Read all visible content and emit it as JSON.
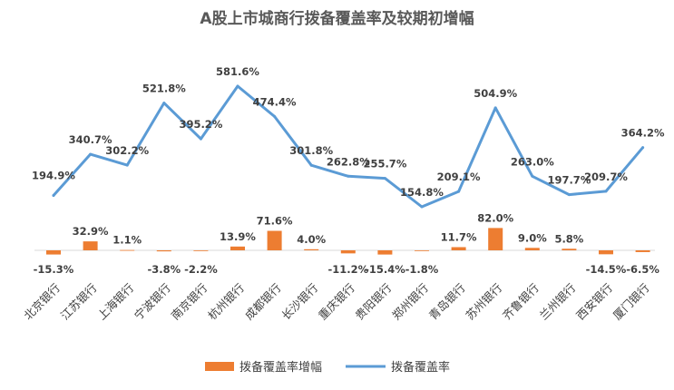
{
  "chart_data": {
    "type": "bar+line",
    "title": "A股上市城商行拨备覆盖率及较期初增幅",
    "categories": [
      "北京银行",
      "江苏银行",
      "上海银行",
      "宁波银行",
      "南京银行",
      "杭州银行",
      "成都银行",
      "长沙银行",
      "重庆银行",
      "贵阳银行",
      "郑州银行",
      "青岛银行",
      "苏州银行",
      "齐鲁银行",
      "兰州银行",
      "西安银行",
      "厦门银行"
    ],
    "series": [
      {
        "name": "拨备覆盖率增幅",
        "type": "bar",
        "values": [
          -15.3,
          32.9,
          1.1,
          -3.8,
          -2.2,
          13.9,
          71.6,
          4.0,
          -11.2,
          -15.4,
          -1.8,
          11.7,
          82.0,
          9.0,
          5.8,
          -14.5,
          -6.5
        ],
        "labels": [
          "-15.3%",
          "32.9%",
          "1.1%",
          "-3.8%",
          "-2.2%",
          "13.9%",
          "71.6%",
          "4.0%",
          "-11.2%",
          "-15.4%",
          "-1.8%",
          "11.7%",
          "82.0%",
          "9.0%",
          "5.8%",
          "-14.5%",
          "-6.5%"
        ],
        "color": "#ED7D31"
      },
      {
        "name": "拨备覆盖率",
        "type": "line",
        "values": [
          194.9,
          340.7,
          302.2,
          521.8,
          395.2,
          581.6,
          474.4,
          301.8,
          262.8,
          255.7,
          154.8,
          209.1,
          504.9,
          263.0,
          197.7,
          209.7,
          364.2
        ],
        "labels": [
          "194.9%",
          "340.7%",
          "302.2%",
          "521.8%",
          "395.2%",
          "581.6%",
          "474.4%",
          "301.8%",
          "262.8%",
          "255.7%",
          "154.8%",
          "209.1%",
          "504.9%",
          "263.0%",
          "197.7%",
          "209.7%",
          "364.2%"
        ],
        "color": "#5B9BD5"
      }
    ],
    "legend": {
      "position": "bottom"
    },
    "grid": false
  }
}
